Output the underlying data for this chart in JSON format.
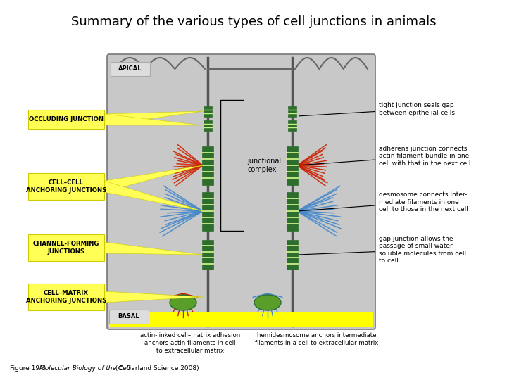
{
  "title": "Summary of the various types of cell junctions in animals",
  "title_fontsize": 13,
  "bg_color": "#ffffff",
  "cell_fill": "#c8c8c8",
  "cell_stroke": "#888888",
  "basal_yellow": "#ffff00",
  "green_dark": "#2d6e2d",
  "green_inner": "#ccee99",
  "red_filament": "#cc2200",
  "blue_filament": "#4488cc",
  "yellow_label": "#ffff44",
  "caption_normal": "Figure 19-3  ",
  "caption_italic": "Molecular Biology of the Cell",
  "caption_rest": " (© Garland Science 2008)"
}
